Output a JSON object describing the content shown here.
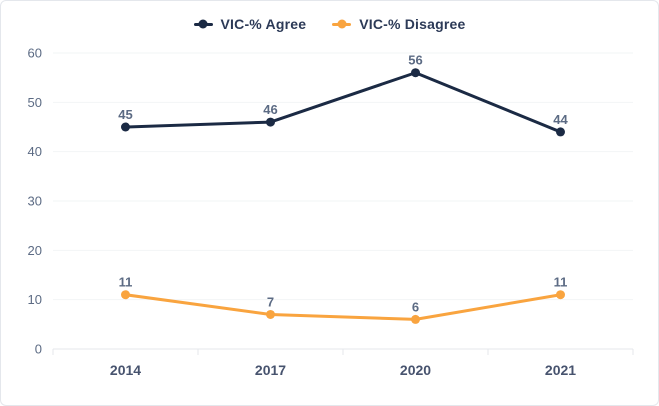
{
  "chart_data": {
    "type": "line",
    "title": "",
    "xlabel": "",
    "ylabel": "",
    "categories": [
      "2014",
      "2017",
      "2020",
      "2021"
    ],
    "series": [
      {
        "name": "VIC-% Agree",
        "values": [
          45,
          46,
          56,
          44
        ],
        "color": "#1b2a44"
      },
      {
        "name": "VIC-% Disagree",
        "values": [
          11,
          7,
          6,
          11
        ],
        "color": "#f9a43f"
      }
    ],
    "ylim": [
      0,
      60
    ],
    "yticks": [
      0,
      10,
      20,
      30,
      40,
      50,
      60
    ],
    "grid": true,
    "legend_position": "top",
    "data_labels_shown": true
  },
  "colors": {
    "background": "#ffffff",
    "card_border": "#e4e7ec",
    "grid_line": "#f2f4f6",
    "axis_line": "#e4e7eb",
    "y_tick_text": "#5c6b84",
    "x_tick_text": "#47536e",
    "data_label_text": "#5c6b84",
    "legend_text": "#2c3a57"
  }
}
